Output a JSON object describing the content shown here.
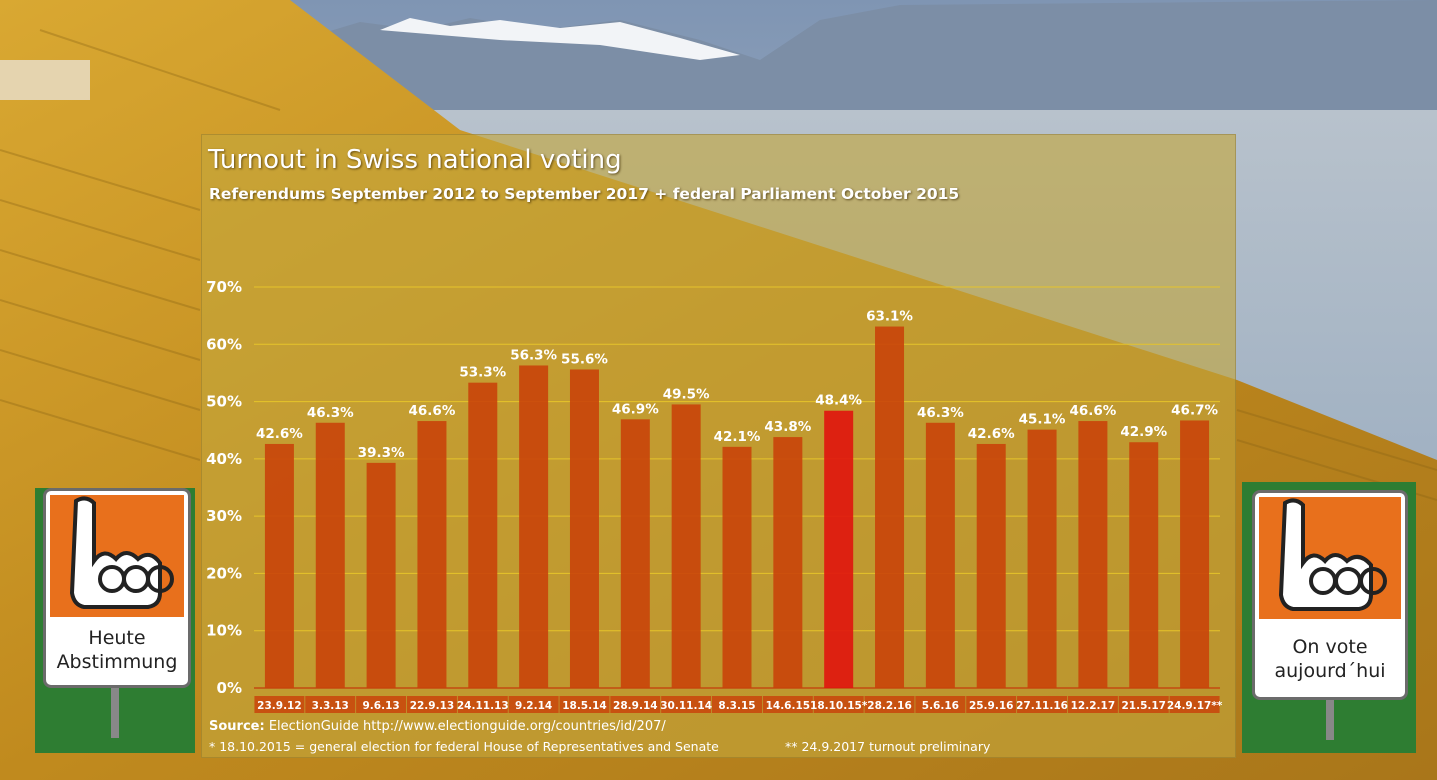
{
  "chart_data": {
    "type": "bar",
    "title": "Turnout in Swiss national voting",
    "subtitle": "Referendums September 2012 to September 2017 + federal Parliament October 2015",
    "categories": [
      "23.9.12",
      "3.3.13",
      "9.6.13",
      "22.9.13",
      "24.11.13",
      "9.2.14",
      "18.5.14",
      "28.9.14",
      "30.11.14",
      "8.3.15",
      "14.6.15",
      "18.10.15*",
      "28.2.16",
      "5.6.16",
      "25.9.16",
      "27.11.16",
      "12.2.17",
      "21.5.17",
      "24.9.17**"
    ],
    "values": [
      42.6,
      46.3,
      39.3,
      46.6,
      53.3,
      56.3,
      55.6,
      46.9,
      49.5,
      42.1,
      43.8,
      48.4,
      63.1,
      46.3,
      42.6,
      45.1,
      46.6,
      42.9,
      46.7
    ],
    "value_labels": [
      "42.6%",
      "46.3%",
      "39.3%",
      "46.6%",
      "53.3%",
      "56.3%",
      "55.6%",
      "46.9%",
      "49.5%",
      "42.1%",
      "43.8%",
      "48.4%",
      "63.1%",
      "46.3%",
      "42.6%",
      "45.1%",
      "46.6%",
      "42.9%",
      "46.7%"
    ],
    "highlight_index": 11,
    "ylim": [
      0,
      70
    ],
    "yticks": [
      0,
      10,
      20,
      30,
      40,
      50,
      60,
      70
    ],
    "ytick_labels": [
      "0%",
      "10%",
      "20%",
      "30%",
      "40%",
      "50%",
      "60%",
      "70%"
    ],
    "grid": true,
    "colors": {
      "bar": "#c9440a",
      "highlight": "#e0140e",
      "grid": "#e6c42a",
      "label": "#ffffff"
    }
  },
  "footer": {
    "source_label": "Source:",
    "source_text": "ElectionGuide http://www.electionguide.org/countries/id/207/",
    "note1": "* 18.10.2015 = general election for federal House of Representatives and Senate",
    "note2": "** 24.9.2017 turnout preliminary"
  },
  "signs": {
    "left": [
      "Heute",
      "Abstimmung"
    ],
    "right": [
      "On vote",
      "aujourd´hui"
    ],
    "icon": "pointing-hand-icon",
    "orange": "#e8701c"
  }
}
